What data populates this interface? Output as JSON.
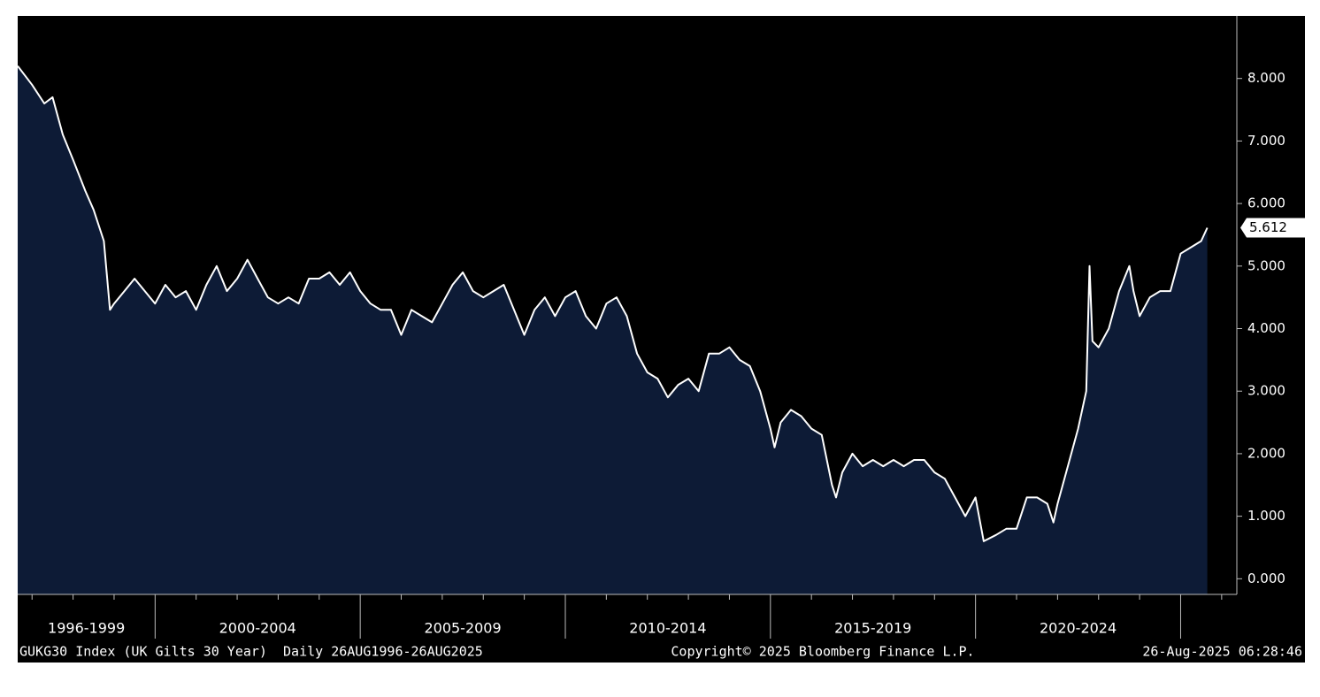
{
  "chart_data": {
    "type": "area",
    "series": [
      {
        "name": "GUKG30 Index",
        "color": "#ffffff",
        "fill": "#0d1b36",
        "x": [
          1996.65,
          1997.0,
          1997.3,
          1997.5,
          1997.75,
          1998.0,
          1998.3,
          1998.5,
          1998.75,
          1998.9,
          1999.0,
          1999.25,
          1999.5,
          1999.75,
          2000.0,
          2000.25,
          2000.5,
          2000.75,
          2001.0,
          2001.25,
          2001.5,
          2001.75,
          2002.0,
          2002.25,
          2002.5,
          2002.75,
          2003.0,
          2003.25,
          2003.5,
          2003.75,
          2004.0,
          2004.25,
          2004.5,
          2004.75,
          2005.0,
          2005.25,
          2005.5,
          2005.75,
          2006.0,
          2006.25,
          2006.5,
          2006.75,
          2007.0,
          2007.25,
          2007.5,
          2007.75,
          2008.0,
          2008.25,
          2008.5,
          2008.75,
          2009.0,
          2009.25,
          2009.5,
          2009.75,
          2010.0,
          2010.25,
          2010.5,
          2010.75,
          2011.0,
          2011.25,
          2011.5,
          2011.75,
          2012.0,
          2012.25,
          2012.5,
          2012.75,
          2013.0,
          2013.25,
          2013.5,
          2013.75,
          2014.0,
          2014.25,
          2014.5,
          2014.75,
          2015.0,
          2015.1,
          2015.25,
          2015.5,
          2015.75,
          2016.0,
          2016.25,
          2016.5,
          2016.6,
          2016.75,
          2017.0,
          2017.25,
          2017.5,
          2017.75,
          2018.0,
          2018.25,
          2018.5,
          2018.75,
          2019.0,
          2019.25,
          2019.5,
          2019.75,
          2020.0,
          2020.2,
          2020.5,
          2020.75,
          2021.0,
          2021.25,
          2021.5,
          2021.75,
          2021.9,
          2022.0,
          2022.25,
          2022.5,
          2022.7,
          2022.78,
          2022.85,
          2023.0,
          2023.25,
          2023.5,
          2023.75,
          2023.85,
          2024.0,
          2024.25,
          2024.5,
          2024.75,
          2025.0,
          2025.25,
          2025.5,
          2025.65
        ],
        "values": [
          8.2,
          7.9,
          7.6,
          7.7,
          7.1,
          6.7,
          6.2,
          5.9,
          5.4,
          4.3,
          4.4,
          4.6,
          4.8,
          4.6,
          4.4,
          4.7,
          4.5,
          4.6,
          4.3,
          4.7,
          5.0,
          4.6,
          4.8,
          5.1,
          4.8,
          4.5,
          4.4,
          4.5,
          4.4,
          4.8,
          4.8,
          4.9,
          4.7,
          4.9,
          4.6,
          4.4,
          4.3,
          4.3,
          3.9,
          4.3,
          4.2,
          4.1,
          4.4,
          4.7,
          4.9,
          4.6,
          4.5,
          4.6,
          4.7,
          4.3,
          3.9,
          4.3,
          4.5,
          4.2,
          4.5,
          4.6,
          4.2,
          4.0,
          4.4,
          4.5,
          4.2,
          3.6,
          3.3,
          3.2,
          2.9,
          3.1,
          3.2,
          3.0,
          3.6,
          3.6,
          3.7,
          3.5,
          3.4,
          3.0,
          2.4,
          2.1,
          2.5,
          2.7,
          2.6,
          2.4,
          2.3,
          1.5,
          1.3,
          1.7,
          2.0,
          1.8,
          1.9,
          1.8,
          1.9,
          1.8,
          1.9,
          1.9,
          1.7,
          1.6,
          1.3,
          1.0,
          1.3,
          0.6,
          0.7,
          0.8,
          0.8,
          1.3,
          1.3,
          1.2,
          0.9,
          1.2,
          1.8,
          2.4,
          3.0,
          5.0,
          3.8,
          3.7,
          4.0,
          4.6,
          5.0,
          4.6,
          4.2,
          4.5,
          4.6,
          4.6,
          5.2,
          5.3,
          5.4,
          5.612
        ]
      }
    ],
    "last_value_label": {
      "value": 5.612,
      "label": "5.612"
    },
    "xlim": [
      1996.65,
      2026.37
    ],
    "xticks": [
      2000,
      2005,
      2010,
      2015,
      2020,
      2025
    ],
    "xminorticks": [
      1997,
      1998,
      1999,
      2001,
      2002,
      2003,
      2004,
      2006,
      2007,
      2008,
      2009,
      2011,
      2012,
      2013,
      2014,
      2016,
      2017,
      2018,
      2019,
      2021,
      2022,
      2023,
      2024,
      2026
    ],
    "periods": [
      "1996-1999",
      "2000-2004",
      "2005-2009",
      "2010-2014",
      "2015-2019",
      "2020-2024"
    ],
    "ylim": [
      -0.25,
      9.0
    ],
    "yticks": [
      {
        "value": 0,
        "label": "0.000"
      },
      {
        "value": 1,
        "label": "1.000"
      },
      {
        "value": 2,
        "label": "2.000"
      },
      {
        "value": 3,
        "label": "3.000"
      },
      {
        "value": 4,
        "label": "4.000"
      },
      {
        "value": 5,
        "label": "5.000"
      },
      {
        "value": 6,
        "label": "6.000"
      },
      {
        "value": 7,
        "label": "7.000"
      },
      {
        "value": 8,
        "label": "8.000"
      }
    ],
    "footer_left": "GUKG30 Index (UK Gilts 30 Year)  Daily 26AUG1996-26AUG2025",
    "footer_center": "Copyright© 2025 Bloomberg Finance L.P.",
    "footer_right": "26-Aug-2025 06:28:46"
  }
}
